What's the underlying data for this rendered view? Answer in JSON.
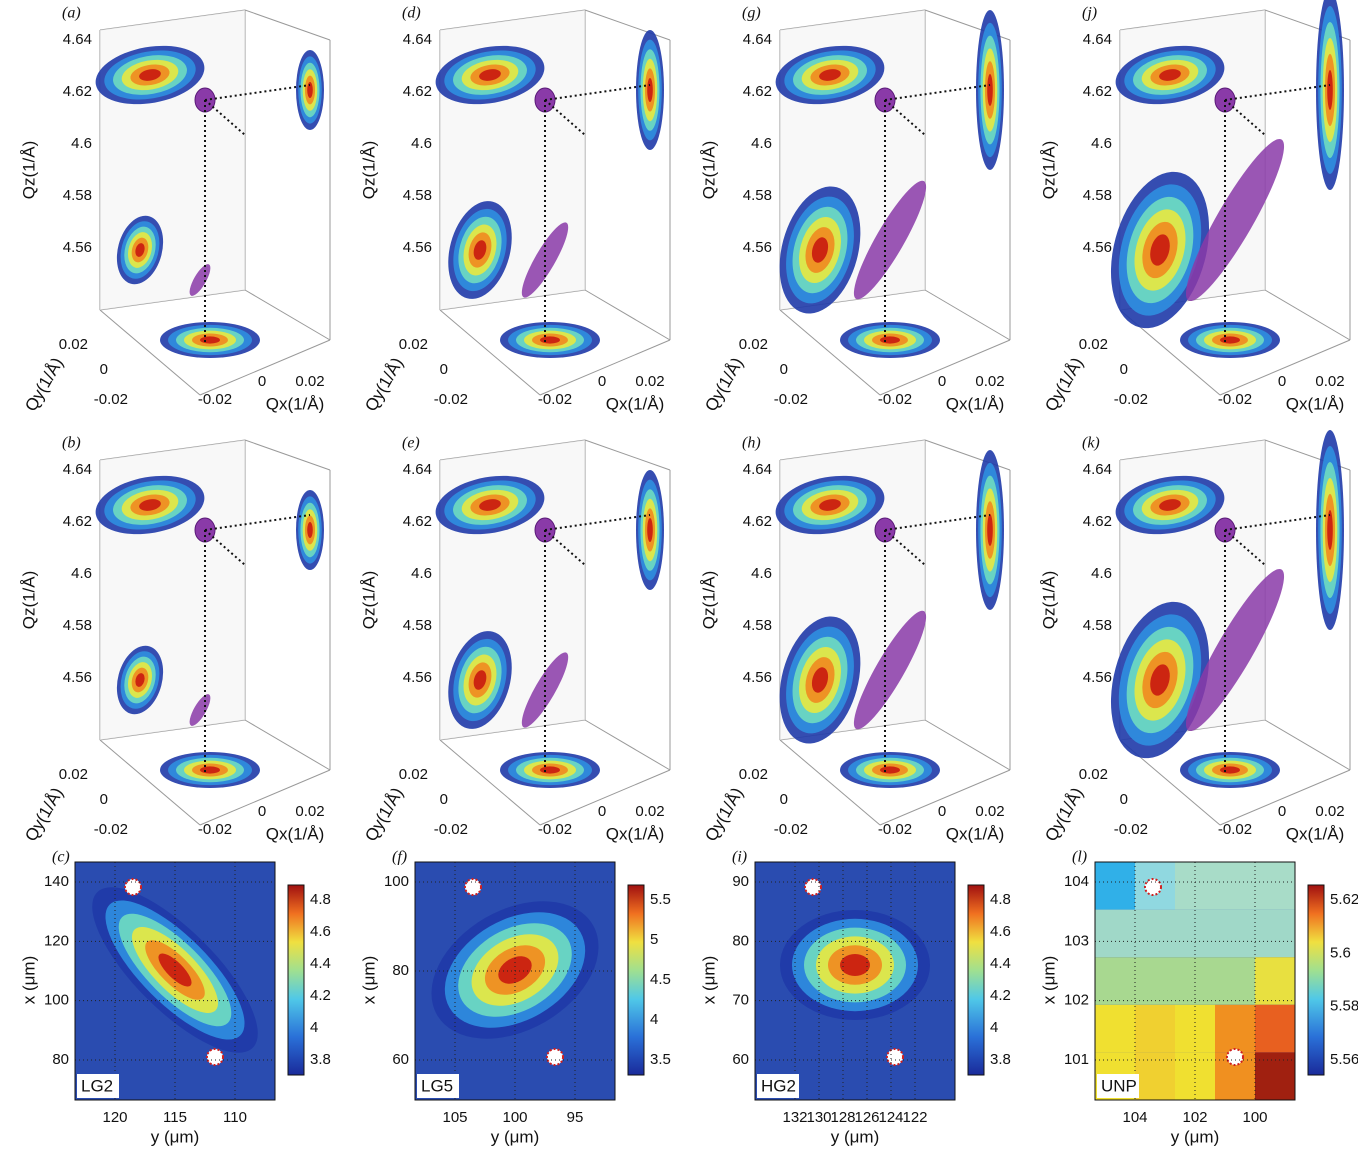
{
  "axes_3d": {
    "qz_label": "Qz(1/Å)",
    "qy_label": "Qy(1/Å)",
    "qx_label": "Qx(1/Å)",
    "qz_ticks": [
      "4.64",
      "4.62",
      "4.6",
      "4.58",
      "4.56"
    ],
    "qy_ticks": [
      "0.02",
      "0",
      "-0.02"
    ],
    "qx_ticks": [
      "-0.02",
      "0",
      "0.02"
    ]
  },
  "panels_3d": [
    {
      "label": "(a)"
    },
    {
      "label": "(d)"
    },
    {
      "label": "(g)"
    },
    {
      "label": "(j)"
    },
    {
      "label": "(b)"
    },
    {
      "label": "(e)"
    },
    {
      "label": "(h)"
    },
    {
      "label": "(k)"
    }
  ],
  "heatmap_axes": {
    "x_label": "y (μm)",
    "y_label": "x (μm)"
  },
  "heatmaps": [
    {
      "label": "(c)",
      "sample": "LG2",
      "x_ticks": [
        "120",
        "115",
        "110"
      ],
      "y_ticks": [
        "140",
        "120",
        "100",
        "80"
      ],
      "colorbar_ticks": [
        "4.8",
        "4.6",
        "4.4",
        "4.2",
        "4",
        "3.8"
      ]
    },
    {
      "label": "(f)",
      "sample": "LG5",
      "x_ticks": [
        "105",
        "100",
        "95"
      ],
      "y_ticks": [
        "100",
        "80",
        "60"
      ],
      "colorbar_ticks": [
        "5.5",
        "5",
        "4.5",
        "4",
        "3.5"
      ]
    },
    {
      "label": "(i)",
      "sample": "HG2",
      "x_ticks": [
        "132",
        "130",
        "128",
        "126",
        "124",
        "122"
      ],
      "y_ticks": [
        "90",
        "80",
        "70",
        "60"
      ],
      "colorbar_ticks": [
        "4.8",
        "4.6",
        "4.4",
        "4.2",
        "4",
        "3.8"
      ]
    },
    {
      "label": "(l)",
      "sample": "UNP",
      "x_ticks": [
        "104",
        "102",
        "100"
      ],
      "y_ticks": [
        "104",
        "103",
        "102",
        "101"
      ],
      "colorbar_ticks": [
        "5.62",
        "5.6",
        "5.58",
        "5.56"
      ]
    }
  ]
}
